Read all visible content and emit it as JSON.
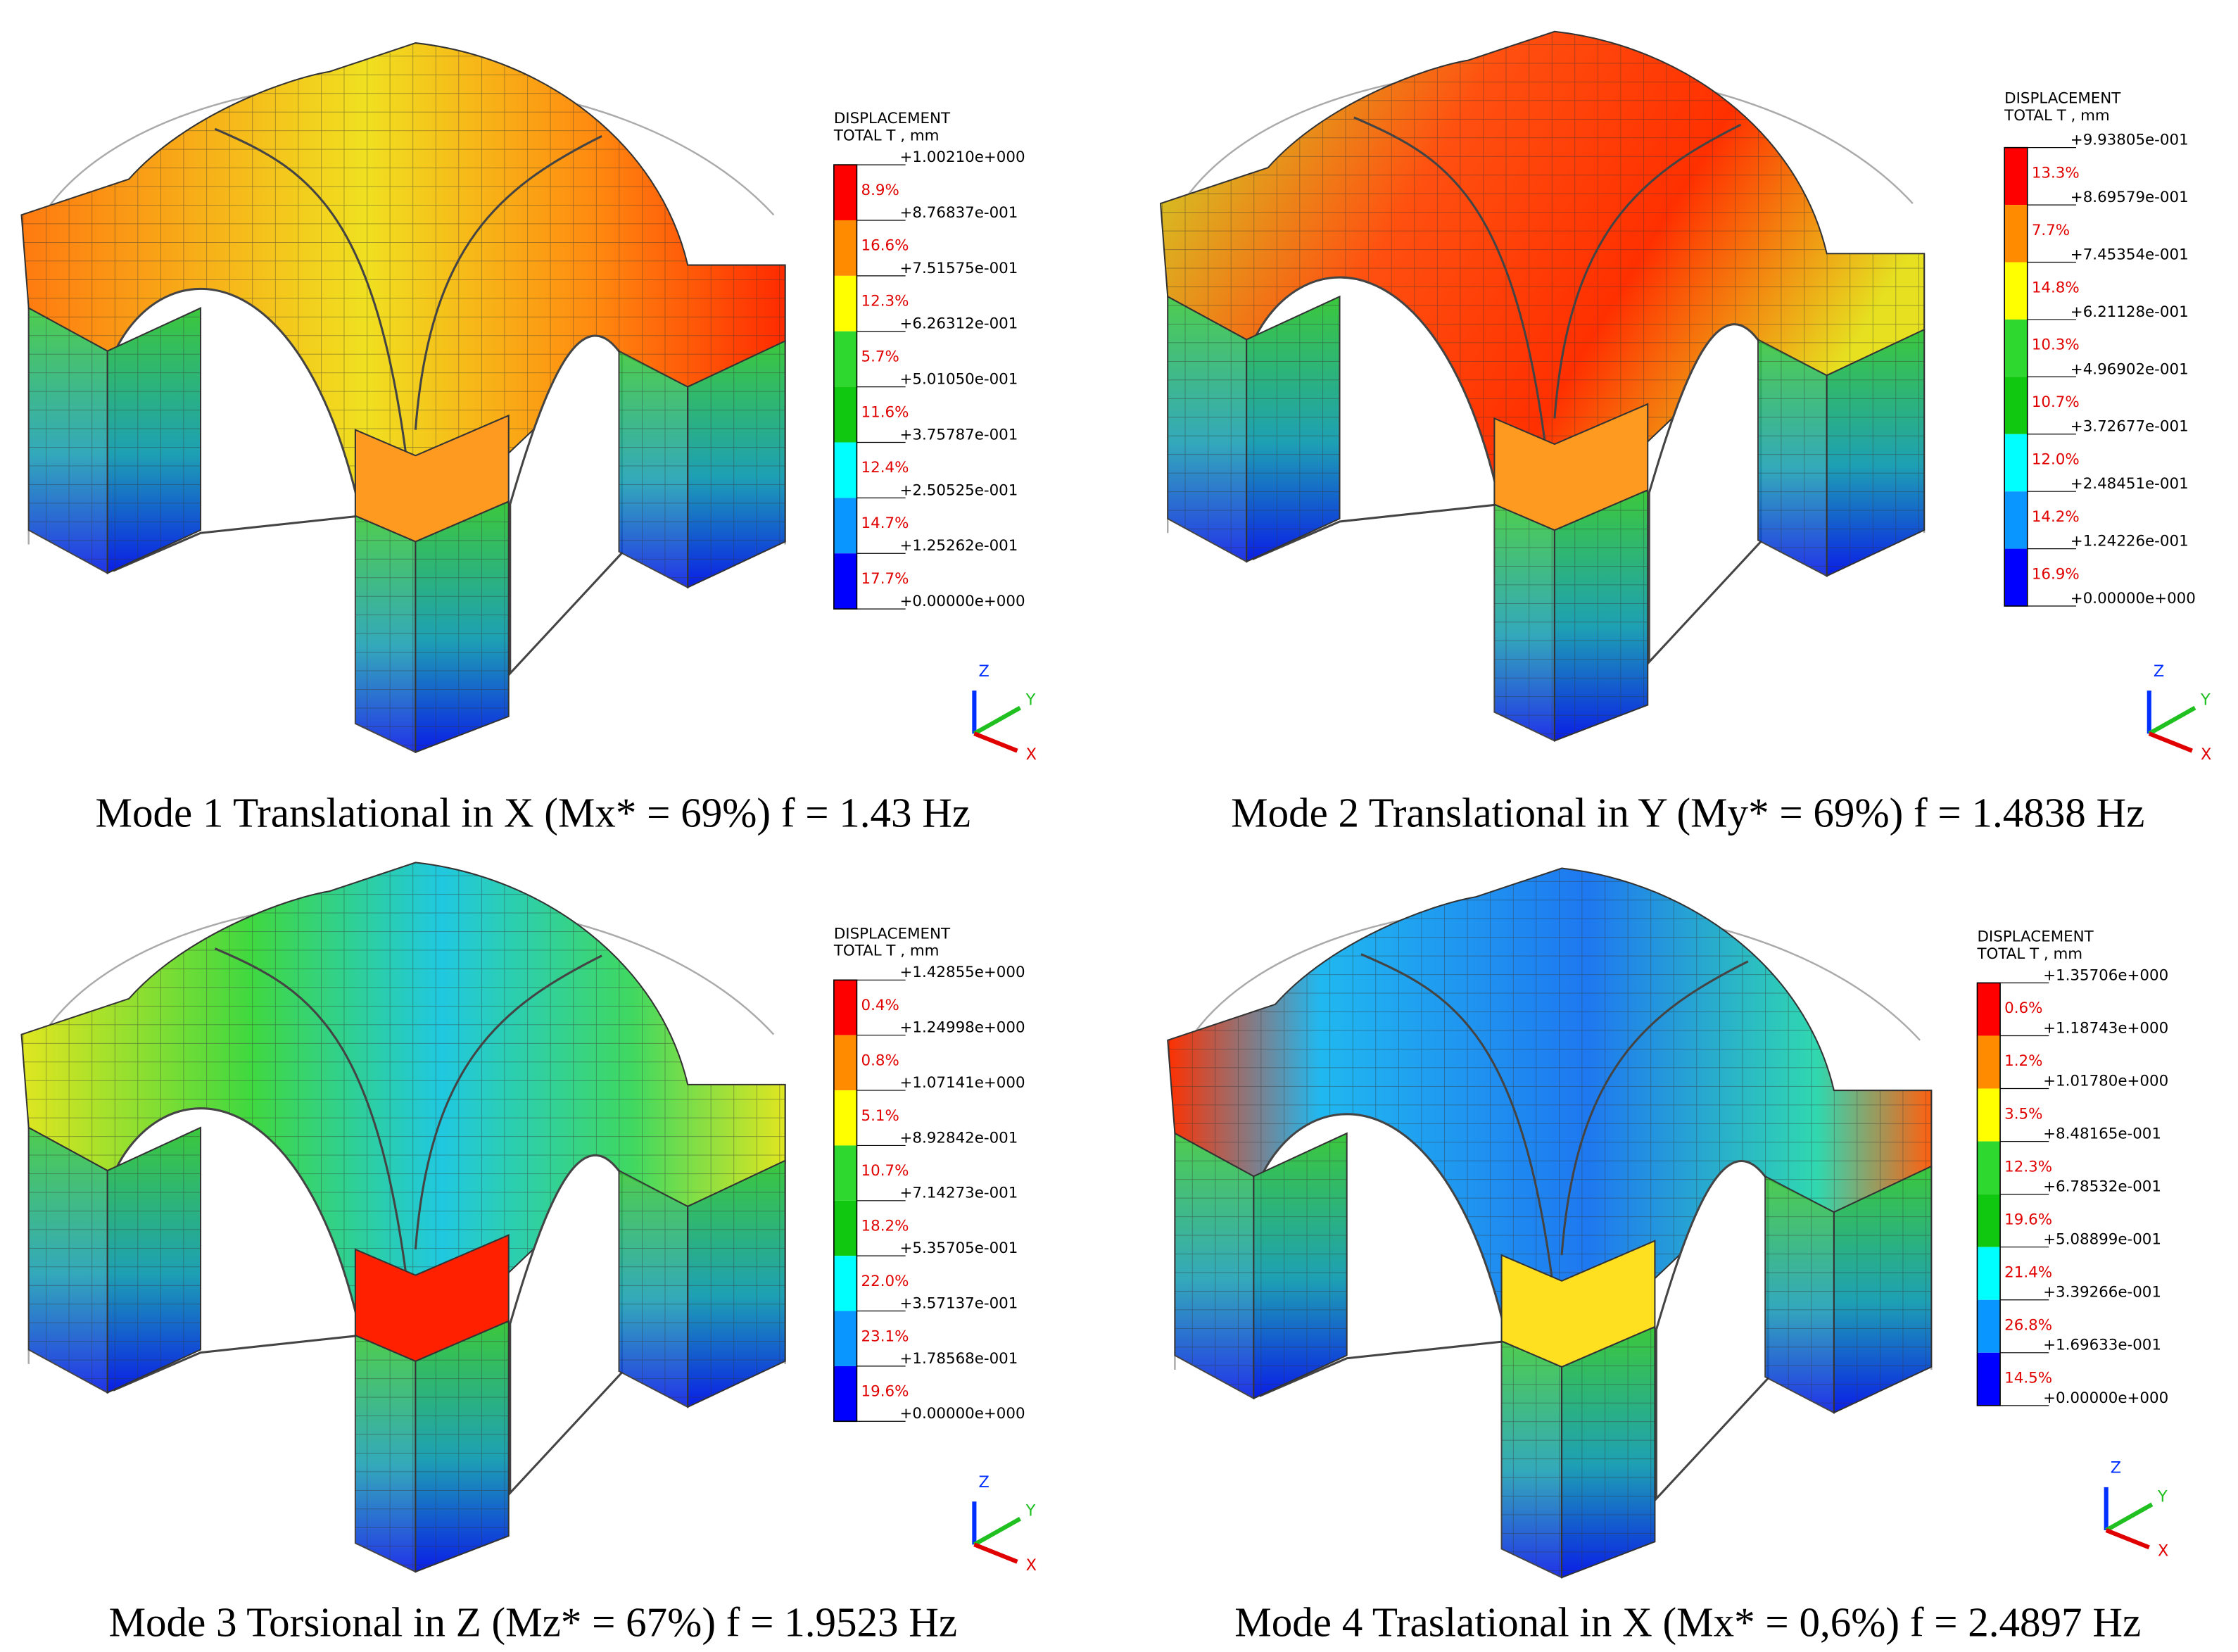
{
  "legend_colors": [
    "#ff0000",
    "#ff8c00",
    "#ffff00",
    "#2ed82e",
    "#10c810",
    "#00ffff",
    "#0a96ff",
    "#0000ff"
  ],
  "axis_labels": [
    "Z",
    "Y",
    "X"
  ],
  "panels": [
    {
      "legend": {
        "title": [
          "DISPLACEMENT",
          "TOTAL T , mm"
        ],
        "values": [
          "+1.00210e+000",
          "+8.76837e-001",
          "+7.51575e-001",
          "+6.26312e-001",
          "+5.01050e-001",
          "+3.75787e-001",
          "+2.50525e-001",
          "+1.25262e-001",
          "+0.00000e+000"
        ],
        "percentages": [
          "8.9%",
          "16.6%",
          "12.3%",
          "5.7%",
          "11.6%",
          "12.4%",
          "14.7%",
          "17.7%"
        ]
      },
      "caption": "Mode 1 Translational in X (Mx* = 69%) f = 1.43 Hz"
    },
    {
      "legend": {
        "title": [
          "DISPLACEMENT",
          "TOTAL T , mm"
        ],
        "values": [
          "+9.93805e-001",
          "+8.69579e-001",
          "+7.45354e-001",
          "+6.21128e-001",
          "+4.96902e-001",
          "+3.72677e-001",
          "+2.48451e-001",
          "+1.24226e-001",
          "+0.00000e+000"
        ],
        "percentages": [
          "13.3%",
          "7.7%",
          "14.8%",
          "10.3%",
          "10.7%",
          "12.0%",
          "14.2%",
          "16.9%"
        ]
      },
      "caption": "Mode 2 Translational in Y (My* = 69%) f = 1.4838 Hz"
    },
    {
      "legend": {
        "title": [
          "DISPLACEMENT",
          "TOTAL T , mm"
        ],
        "values": [
          "+1.42855e+000",
          "+1.24998e+000",
          "+1.07141e+000",
          "+8.92842e-001",
          "+7.14273e-001",
          "+5.35705e-001",
          "+3.57137e-001",
          "+1.78568e-001",
          "+0.00000e+000"
        ],
        "percentages": [
          "0.4%",
          "0.8%",
          "5.1%",
          "10.7%",
          "18.2%",
          "22.0%",
          "23.1%",
          "19.6%"
        ]
      },
      "caption": "Mode 3 Torsional in Z (Mz* = 67%) f = 1.9523 Hz"
    },
    {
      "legend": {
        "title": [
          "DISPLACEMENT",
          "TOTAL T , mm"
        ],
        "values": [
          "+1.35706e+000",
          "+1.18743e+000",
          "+1.01780e+000",
          "+8.48165e-001",
          "+6.78532e-001",
          "+5.08899e-001",
          "+3.39266e-001",
          "+1.69633e-001",
          "+0.00000e+000"
        ],
        "percentages": [
          "0.6%",
          "1.2%",
          "3.5%",
          "12.3%",
          "19.6%",
          "21.4%",
          "26.8%",
          "14.5%"
        ]
      },
      "caption": "Mode 4 Traslational in X (Mx* = 0,6%) f = 2.4897 Hz"
    }
  ]
}
